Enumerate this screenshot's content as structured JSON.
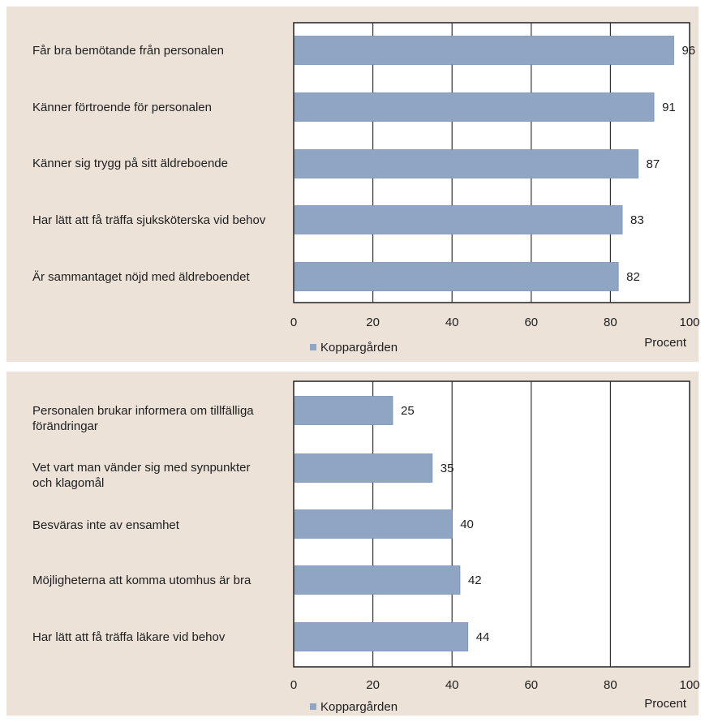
{
  "chart_data": [
    {
      "type": "bar",
      "orientation": "horizontal",
      "categories": [
        "Får bra bemötande från personalen",
        "Känner förtroende för personalen",
        "Känner sig trygg på sitt äldreboende",
        "Har lätt att få träffa sjuksköterska vid behov",
        "Är sammantaget nöjd med äldreboendet"
      ],
      "series": [
        {
          "name": "Koppargården",
          "values": [
            96,
            91,
            87,
            83,
            82
          ]
        }
      ],
      "xlim": [
        0,
        100
      ],
      "xticks": [
        "0",
        "20",
        "40",
        "60",
        "80",
        "100"
      ],
      "xlabel": "Procent",
      "grid": true,
      "legend": "bottom-left",
      "bar_color": "#8fa5c4"
    },
    {
      "type": "bar",
      "orientation": "horizontal",
      "categories": [
        "Personalen brukar informera om tillfälliga förändringar",
        "Vet vart man vänder sig med synpunkter och klagomål",
        "Besväras inte av ensamhet",
        "Möjligheterna att komma utomhus är bra",
        "Har lätt att få träffa läkare vid behov"
      ],
      "series": [
        {
          "name": "Koppargården",
          "values": [
            25,
            35,
            40,
            42,
            44
          ]
        }
      ],
      "xlim": [
        0,
        100
      ],
      "xticks": [
        "0",
        "20",
        "40",
        "60",
        "80",
        "100"
      ],
      "xlabel": "Procent",
      "grid": true,
      "legend": "bottom-left",
      "bar_color": "#8fa5c4"
    }
  ]
}
